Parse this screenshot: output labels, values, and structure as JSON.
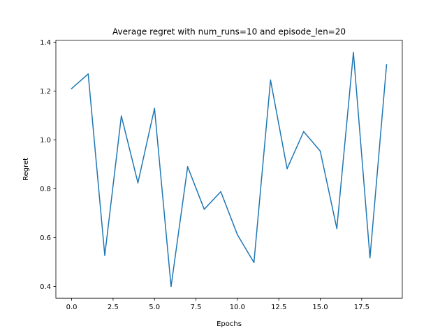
{
  "chart_data": {
    "type": "line",
    "title": "Average regret with num_runs=10 and episode_len=20",
    "xlabel": "Epochs",
    "ylabel": "Regret",
    "xlim": [
      -0.95,
      19.95
    ],
    "ylim": [
      0.352,
      1.408
    ],
    "x_ticks": [
      0.0,
      2.5,
      5.0,
      7.5,
      10.0,
      12.5,
      15.0,
      17.5
    ],
    "x_tick_labels": [
      "0.0",
      "2.5",
      "5.0",
      "7.5",
      "10.0",
      "12.5",
      "15.0",
      "17.5"
    ],
    "y_ticks": [
      0.4,
      0.6,
      0.8,
      1.0,
      1.2,
      1.4
    ],
    "y_tick_labels": [
      "0.4",
      "0.6",
      "0.8",
      "1.0",
      "1.2",
      "1.4"
    ],
    "grid": false,
    "legend": "none",
    "series": [
      {
        "color": "#1f77b4",
        "x": [
          0,
          1,
          2,
          3,
          4,
          5,
          6,
          7,
          8,
          9,
          10,
          11,
          12,
          13,
          14,
          15,
          16,
          17,
          18,
          19
        ],
        "y": [
          1.21,
          1.27,
          0.527,
          1.098,
          0.824,
          1.129,
          0.4,
          0.89,
          0.716,
          0.788,
          0.612,
          0.498,
          1.245,
          0.882,
          1.034,
          0.954,
          0.637,
          1.358,
          0.517,
          1.307
        ]
      }
    ]
  }
}
